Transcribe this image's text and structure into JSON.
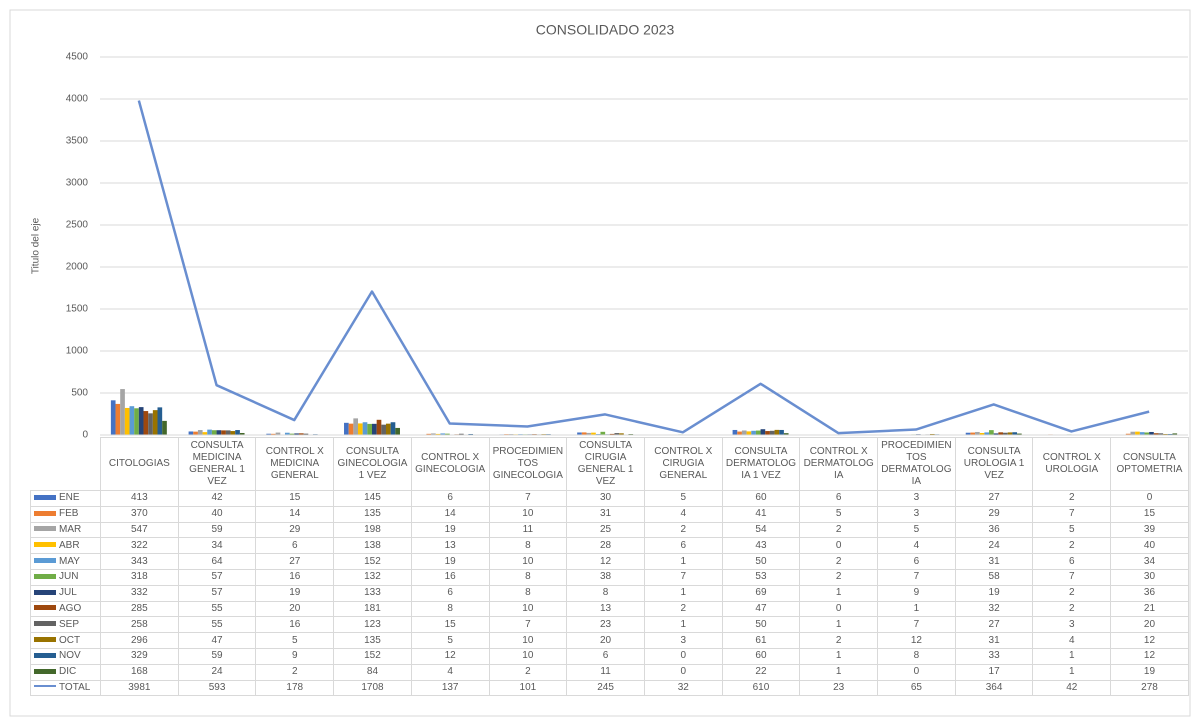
{
  "chart_data": {
    "type": "bar",
    "title": "CONSOLIDADO 2023",
    "y_label": "Titulo del eje",
    "categories": [
      "CITOLOGIAS",
      "CONSULTA MEDICINA GENERAL 1 VEZ",
      "CONTROL X MEDICINA GENERAL",
      "CONSULTA GINECOLOGIA 1 VEZ",
      "CONTROL X GINECOLOGIA",
      "PROCEDIMIENTOS GINECOLOGIA",
      "CONSULTA CIRUGIA GENERAL 1 VEZ",
      "CONTROL X CIRUGIA GENERAL",
      "CONSULTA DERMATOLOGIA 1 VEZ",
      "CONTROL X DERMATOLOGIA",
      "PROCEDIMIENTOS DERMATOLOGIA",
      "CONSULTA UROLOGIA 1 VEZ",
      "CONTROL X UROLOGIA",
      "CONSULTA OPTOMETRIA"
    ],
    "ylim": [
      0,
      4500
    ],
    "yticks": [
      0,
      500,
      1000,
      1500,
      2000,
      2500,
      3000,
      3500,
      4000,
      4500
    ],
    "grid": true,
    "series": [
      {
        "name": "ENE",
        "color": "#4472c4",
        "values": [
          413,
          42,
          15,
          145,
          6,
          7,
          30,
          5,
          60,
          6,
          3,
          27,
          2,
          0
        ]
      },
      {
        "name": "FEB",
        "color": "#ed7d31",
        "values": [
          370,
          40,
          14,
          135,
          14,
          10,
          31,
          4,
          41,
          5,
          3,
          29,
          7,
          15
        ]
      },
      {
        "name": "MAR",
        "color": "#a5a5a5",
        "values": [
          547,
          59,
          29,
          198,
          19,
          11,
          25,
          2,
          54,
          2,
          5,
          36,
          5,
          39
        ]
      },
      {
        "name": "ABR",
        "color": "#ffc000",
        "values": [
          322,
          34,
          6,
          138,
          13,
          8,
          28,
          6,
          43,
          0,
          4,
          24,
          2,
          40
        ]
      },
      {
        "name": "MAY",
        "color": "#5b9bd5",
        "values": [
          343,
          64,
          27,
          152,
          19,
          10,
          12,
          1,
          50,
          2,
          6,
          31,
          6,
          34
        ]
      },
      {
        "name": "JUN",
        "color": "#70ad47",
        "values": [
          318,
          57,
          16,
          132,
          16,
          8,
          38,
          7,
          53,
          2,
          7,
          58,
          7,
          30
        ]
      },
      {
        "name": "JUL",
        "color": "#264478",
        "values": [
          332,
          57,
          19,
          133,
          6,
          8,
          8,
          1,
          69,
          1,
          9,
          19,
          2,
          36
        ]
      },
      {
        "name": "AGO",
        "color": "#9e480e",
        "values": [
          285,
          55,
          20,
          181,
          8,
          10,
          13,
          2,
          47,
          0,
          1,
          32,
          2,
          21
        ]
      },
      {
        "name": "SEP",
        "color": "#636363",
        "values": [
          258,
          55,
          16,
          123,
          15,
          7,
          23,
          1,
          50,
          1,
          7,
          27,
          3,
          20
        ]
      },
      {
        "name": "OCT",
        "color": "#997300",
        "values": [
          296,
          47,
          5,
          135,
          5,
          10,
          20,
          3,
          61,
          2,
          12,
          31,
          4,
          12
        ]
      },
      {
        "name": "NOV",
        "color": "#255e91",
        "values": [
          329,
          59,
          9,
          152,
          12,
          10,
          6,
          0,
          60,
          1,
          8,
          33,
          1,
          12
        ]
      },
      {
        "name": "DIC",
        "color": "#43682b",
        "values": [
          168,
          24,
          2,
          84,
          4,
          2,
          11,
          0,
          22,
          1,
          0,
          17,
          1,
          19
        ]
      },
      {
        "name": "TOTAL",
        "color": "#698ed0",
        "type": "line",
        "values": [
          3981,
          593,
          178,
          1708,
          137,
          101,
          245,
          32,
          610,
          23,
          65,
          364,
          42,
          278
        ]
      }
    ]
  }
}
